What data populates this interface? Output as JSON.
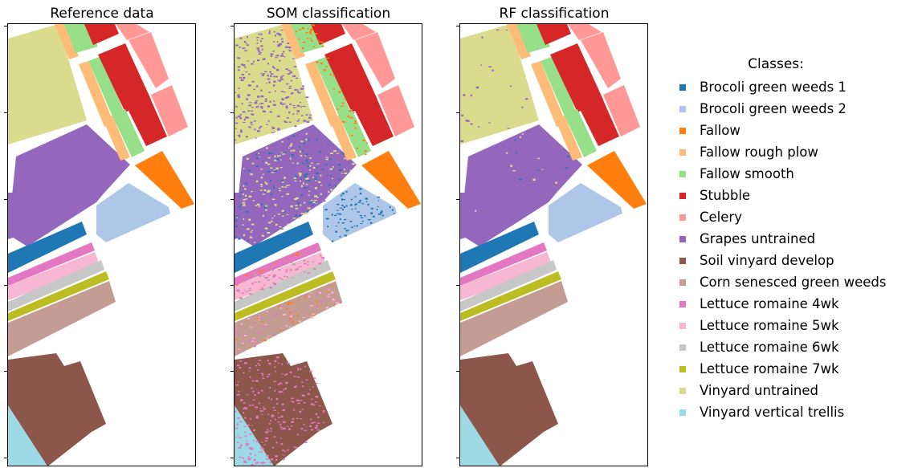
{
  "panels": [
    {
      "title": "Reference data"
    },
    {
      "title": "SOM classification"
    },
    {
      "title": "RF classification"
    }
  ],
  "legend": {
    "title": "Classes:",
    "items": [
      {
        "label": "Brocoli green weeds 1",
        "color": "#1f77b4"
      },
      {
        "label": "Brocoli green weeds 2",
        "color": "#aec7e8"
      },
      {
        "label": "Fallow",
        "color": "#ff7f0e"
      },
      {
        "label": "Fallow rough plow",
        "color": "#ffbb78"
      },
      {
        "label": "Fallow smooth",
        "color": "#98df8a"
      },
      {
        "label": "Stubble",
        "color": "#d62728"
      },
      {
        "label": "Celery",
        "color": "#ff9896"
      },
      {
        "label": "Grapes untrained",
        "color": "#9467bd"
      },
      {
        "label": "Soil vinyard develop",
        "color": "#8c564b"
      },
      {
        "label": "Corn senesced green weeds",
        "color": "#c49c94"
      },
      {
        "label": "Lettuce romaine 4wk",
        "color": "#e377c2"
      },
      {
        "label": "Lettuce romaine 5wk",
        "color": "#f7b6d2"
      },
      {
        "label": "Lettuce romaine 6wk",
        "color": "#c7c7c7"
      },
      {
        "label": "Lettuce romaine 7wk",
        "color": "#bcbd22"
      },
      {
        "label": "Vinyard untrained",
        "color": "#dbdb8d"
      },
      {
        "label": "Vinyard vertical trellis",
        "color": "#9edae5"
      }
    ]
  }
}
